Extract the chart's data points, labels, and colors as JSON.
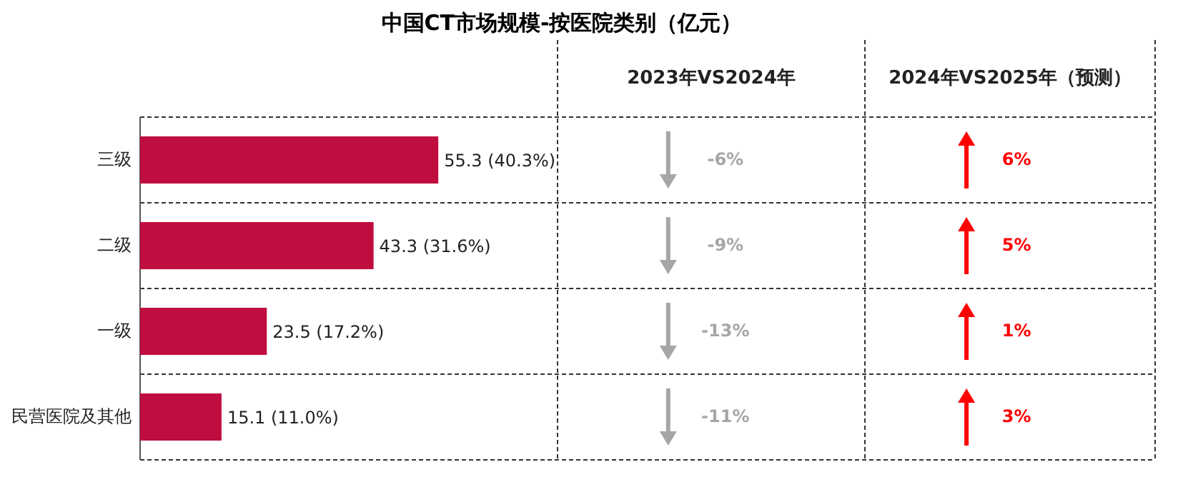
{
  "chart_data": {
    "type": "bar",
    "orientation": "horizontal",
    "title": "中国CT市场规模-按医院类别（亿元）",
    "categories": [
      "三级",
      "二级",
      "一级",
      "民营医院及其他"
    ],
    "values": [
      55.3,
      43.3,
      23.5,
      15.1
    ],
    "value_labels": [
      "55.3 (40.3%)",
      "43.3 (31.6%)",
      "23.5 (17.2%)",
      "15.1 (11.0%)"
    ],
    "color": "#c00d3f",
    "annotations": [
      "2023年VS2024年",
      "-6%",
      "-9%",
      "-13%",
      "-11%",
      "2024年VS2025年（预测）",
      "6%",
      "5%",
      "1%",
      "3%"
    ]
  }
}
